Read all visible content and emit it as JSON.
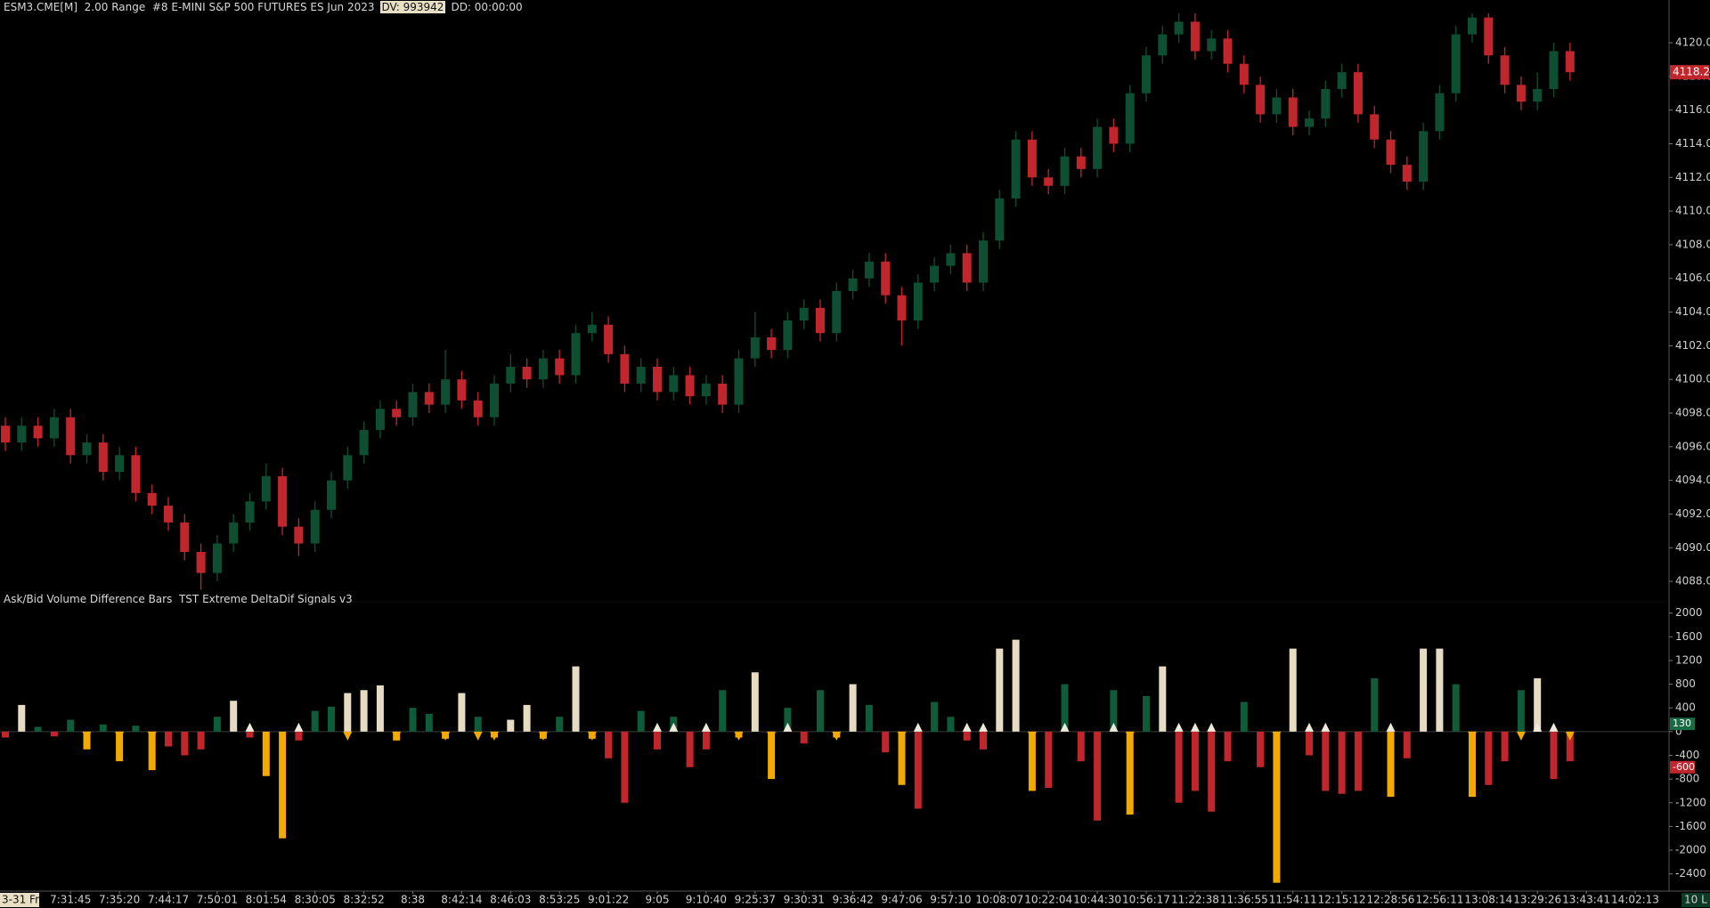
{
  "chart_data": [
    {
      "type": "candlestick",
      "title": "ESM3.CME[M]  2.00 Range  #8 E-MINI S&P 500 FUTURES ES Jun 2023",
      "dv": "DV: 993942",
      "dd": "DD: 00:00:00",
      "bar_count_label": "10 L",
      "up_color": "#0e4f34",
      "down_color": "#c1262d",
      "last_price": 4118.25,
      "last_price_color": "#c1262d",
      "categories": [
        "3-31 Fr",
        null,
        null,
        null,
        "7:31:45",
        null,
        null,
        "7:35:20",
        null,
        null,
        "7:44:17",
        null,
        null,
        "7:50:01",
        null,
        null,
        "8:01:54",
        null,
        null,
        "8:30:05",
        null,
        null,
        "8:32:52",
        null,
        null,
        "8:38",
        null,
        null,
        "8:42:14",
        null,
        null,
        "8:46:03",
        null,
        null,
        "8:53:25",
        null,
        null,
        "9:01:22",
        null,
        null,
        "9:05",
        null,
        null,
        "9:10:40",
        null,
        null,
        "9:25:37",
        null,
        null,
        "9:30:31",
        null,
        null,
        "9:36:42",
        null,
        null,
        "9:47:06",
        null,
        null,
        "9:57:10",
        null,
        null,
        "10:08:07",
        null,
        null,
        "10:22:04",
        null,
        null,
        "10:44:30",
        null,
        null,
        "10:56:17",
        null,
        null,
        "11:22:38",
        null,
        null,
        "11:36:55",
        null,
        null,
        "11:54:11",
        null,
        null,
        "12:15:12",
        null,
        null,
        "12:28:56",
        null,
        null,
        "12:56:11",
        null,
        null,
        "13:08:14",
        null,
        null,
        "13:29:26",
        null,
        null,
        "13:43:41",
        null,
        null,
        "14:02:13"
      ],
      "open": [
        4097.25,
        4096.25,
        4097.25,
        4096.5,
        4097.75,
        4095.5,
        4096.25,
        4094.5,
        4095.5,
        4093.25,
        4092.5,
        4091.5,
        4089.75,
        4088.5,
        4090.25,
        4091.5,
        4092.75,
        4094.25,
        4091.25,
        4090.25,
        4092.25,
        4094,
        4095.5,
        4097,
        4098.25,
        4097.75,
        4099.25,
        4098.5,
        4100,
        4098.75,
        4097.75,
        4099.75,
        4100.75,
        4100,
        4101.25,
        4100.25,
        4102.75,
        4103.25,
        4101.5,
        4099.75,
        4100.75,
        4099.25,
        4100.25,
        4099,
        4099.75,
        4098.5,
        4101.25,
        4102.5,
        4101.75,
        4103.5,
        4104.25,
        4102.75,
        4105.25,
        4106,
        4107,
        4105,
        4103.5,
        4105.75,
        4106.75,
        4107.5,
        4105.75,
        4108.25,
        4110.75,
        4114.25,
        4112,
        4111.5,
        4113.25,
        4112.5,
        4115,
        4114,
        4117,
        4119.25,
        4120.5,
        4121.25,
        4119.5,
        4120.25,
        4118.75,
        4117.5,
        4115.75,
        4116.75,
        4115,
        4115.5,
        4117.25,
        4118.25,
        4115.75,
        4114.25,
        4112.75,
        4111.75,
        4114.75,
        4117,
        4120.5,
        4121.5,
        4119.25,
        4117.5,
        4116.5,
        4117.25,
        4119.5,
        null,
        null,
        null,
        null
      ],
      "high": [
        4097.75,
        4097.75,
        4097.75,
        4098.25,
        4098.25,
        4096.75,
        4096.75,
        4096,
        4096,
        4093.75,
        4093,
        4092,
        4090.25,
        4090.75,
        4092,
        4093.25,
        4095,
        4094.75,
        4091.75,
        4092.75,
        4094.5,
        4096,
        4097.5,
        4098.75,
        4098.75,
        4099.75,
        4099.75,
        4101.75,
        4100.5,
        4099.25,
        4100.25,
        4101.5,
        4101.25,
        4101.75,
        4101.75,
        4103.25,
        4104,
        4103.75,
        4102,
        4101.25,
        4101.25,
        4100.75,
        4100.75,
        4100.25,
        4100.25,
        4101.75,
        4104,
        4103,
        4104,
        4104.75,
        4104.75,
        4105.75,
        4106.5,
        4107.5,
        4107.5,
        4105.5,
        4106.25,
        4107.25,
        4108,
        4108,
        4108.75,
        4111.25,
        4114.75,
        4114.75,
        4112.5,
        4113.75,
        4113.75,
        4115.5,
        4115.5,
        4117.5,
        4119.75,
        4121,
        4121.75,
        4121.75,
        4120.75,
        4120.75,
        4119.25,
        4118,
        4117.25,
        4117.25,
        4116,
        4117.75,
        4118.75,
        4118.75,
        4116.25,
        4114.75,
        4113.25,
        4115.25,
        4117.5,
        4121,
        4121.75,
        4121.75,
        4119.75,
        4118,
        4118.25,
        4120,
        4120,
        null,
        null,
        null,
        null
      ],
      "low": [
        4095.75,
        4095.75,
        4096,
        4096,
        4095,
        4095,
        4094,
        4094,
        4092.75,
        4092,
        4091,
        4089.25,
        4087.5,
        4088,
        4089.75,
        4091,
        4092.25,
        4090.75,
        4089.5,
        4089.75,
        4091.75,
        4093.5,
        4095,
        4096.5,
        4097.25,
        4097.25,
        4098,
        4098,
        4098.25,
        4097.25,
        4097.25,
        4099.25,
        4099.5,
        4099.5,
        4099.75,
        4099.75,
        4102.25,
        4101,
        4099.25,
        4099.25,
        4098.75,
        4098.75,
        4098.5,
        4098.5,
        4098,
        4098,
        4100.75,
        4101.25,
        4101.25,
        4103,
        4102.25,
        4102.25,
        4104.75,
        4105.5,
        4104.5,
        4102,
        4103,
        4105.25,
        4106.25,
        4105.25,
        4105.25,
        4107.75,
        4110.25,
        4111.5,
        4111,
        4111,
        4112,
        4112,
        4113.5,
        4113.5,
        4116.5,
        4118.75,
        4120,
        4119,
        4119,
        4118.25,
        4117,
        4115.25,
        4115.25,
        4114.5,
        4114.5,
        4115,
        4116.75,
        4115.25,
        4113.75,
        4112.25,
        4111.25,
        4111.25,
        4114.25,
        4116.5,
        4120,
        4118.75,
        4117,
        4116,
        4116,
        4116.75,
        4117.75,
        null,
        null,
        null,
        null
      ],
      "close": [
        4096.25,
        4097.25,
        4096.5,
        4097.75,
        4095.5,
        4096.25,
        4094.5,
        4095.5,
        4093.25,
        4092.5,
        4091.5,
        4089.75,
        4088.5,
        4090.25,
        4091.5,
        4092.75,
        4094.25,
        4091.25,
        4090.25,
        4092.25,
        4094,
        4095.5,
        4097,
        4098.25,
        4097.75,
        4099.25,
        4098.5,
        4100,
        4098.75,
        4097.75,
        4099.75,
        4100.75,
        4100,
        4101.25,
        4100.25,
        4102.75,
        4103.25,
        4101.5,
        4099.75,
        4100.75,
        4099.25,
        4100.25,
        4099,
        4099.75,
        4098.5,
        4101.25,
        4102.5,
        4101.75,
        4103.5,
        4104.25,
        4102.75,
        4105.25,
        4106,
        4107,
        4105,
        4103.5,
        4105.75,
        4106.75,
        4107.5,
        4105.75,
        4108.25,
        4110.75,
        4114.25,
        4112,
        4111.5,
        4113.25,
        4112.5,
        4115,
        4114,
        4117,
        4119.25,
        4120.5,
        4121.25,
        4119.5,
        4120.25,
        4118.75,
        4117.5,
        4115.75,
        4116.75,
        4115,
        4115.5,
        4117.25,
        4118.25,
        4115.75,
        4114.25,
        4112.75,
        4111.75,
        4114.75,
        4117,
        4120.5,
        4121.5,
        4119.25,
        4117.5,
        4116.5,
        4117.25,
        4119.5,
        4118.25,
        null,
        null,
        null,
        null
      ],
      "ylim": [
        4087,
        4121.8
      ],
      "yticks": [
        {
          "value": 4088,
          "label": "4088.00"
        },
        {
          "value": 4090,
          "label": "4090.00"
        },
        {
          "value": 4092,
          "label": "4092.00"
        },
        {
          "value": 4094,
          "label": "4094.00"
        },
        {
          "value": 4096,
          "label": "4096.00"
        },
        {
          "value": 4098,
          "label": "4098.00"
        },
        {
          "value": 4100,
          "label": "4100.00"
        },
        {
          "value": 4102,
          "label": "4102.00"
        },
        {
          "value": 4104,
          "label": "4104.00"
        },
        {
          "value": 4106,
          "label": "4106.00"
        },
        {
          "value": 4108,
          "label": "4108.00"
        },
        {
          "value": 4110,
          "label": "4110.00"
        },
        {
          "value": 4112,
          "label": "4112.00"
        },
        {
          "value": 4114,
          "label": "4114.00"
        },
        {
          "value": 4116,
          "label": "4116.00"
        },
        {
          "value": 4118,
          "label": "4118.00"
        },
        {
          "value": 4120,
          "label": "4120.00"
        }
      ],
      "grid": false
    },
    {
      "type": "bar",
      "title": "Ask/Bid Volume Difference Bars  TST Extreme DeltaDif Signals v3",
      "values": [
        -100,
        450,
        80,
        -80,
        200,
        -300,
        120,
        -500,
        100,
        -650,
        -250,
        -400,
        -300,
        250,
        520,
        -100,
        -750,
        -1800,
        -150,
        350,
        420,
        650,
        700,
        780,
        -150,
        400,
        300,
        -120,
        650,
        250,
        -100,
        200,
        450,
        -120,
        250,
        1100,
        -120,
        -450,
        -1200,
        350,
        -300,
        250,
        -600,
        -300,
        700,
        -100,
        1000,
        -800,
        400,
        -200,
        700,
        -100,
        800,
        450,
        -350,
        -900,
        -1300,
        500,
        250,
        -150,
        -300,
        1400,
        1550,
        -1000,
        -950,
        800,
        -500,
        -1500,
        700,
        -1400,
        600,
        1100,
        -1200,
        -1000,
        -1350,
        -500,
        500,
        -600,
        -2550,
        1400,
        -400,
        -1000,
        -1050,
        -1000,
        900,
        -1100,
        -450,
        1400,
        1400,
        800,
        -1100,
        -900,
        -500,
        700,
        900,
        -800,
        -500,
        null,
        null,
        null,
        null
      ],
      "bar_colors": [
        "#c1262d",
        "#e6dcc3",
        "#0f5c3a",
        "#c1262d",
        "#0f5c3a",
        "#f2a900",
        "#0f5c3a",
        "#f2a900",
        "#0f5c3a",
        "#f2a900",
        "#c1262d",
        "#c1262d",
        "#c1262d",
        "#0f5c3a",
        "#e6dcc3",
        "#c1262d",
        "#f2a900",
        "#f2a900",
        "#c1262d",
        "#0f5c3a",
        "#0f5c3a",
        "#e6dcc3",
        "#e6dcc3",
        "#e6dcc3",
        "#f2a900",
        "#0f5c3a",
        "#0f5c3a",
        "#f2a900",
        "#e6dcc3",
        "#0f5c3a",
        "#f2a900",
        "#e6dcc3",
        "#e6dcc3",
        "#f2a900",
        "#0f5c3a",
        "#e6dcc3",
        "#f2a900",
        "#c1262d",
        "#c1262d",
        "#0f5c3a",
        "#c1262d",
        "#0f5c3a",
        "#c1262d",
        "#c1262d",
        "#0f5c3a",
        "#f2a900",
        "#e6dcc3",
        "#f2a900",
        "#0f5c3a",
        "#c1262d",
        "#0f5c3a",
        "#f2a900",
        "#e6dcc3",
        "#0f5c3a",
        "#c1262d",
        "#f2a900",
        "#c1262d",
        "#0f5c3a",
        "#0f5c3a",
        "#c1262d",
        "#c1262d",
        "#e6dcc3",
        "#e6dcc3",
        "#f2a900",
        "#c1262d",
        "#0f5c3a",
        "#c1262d",
        "#c1262d",
        "#0f5c3a",
        "#f2a900",
        "#0f5c3a",
        "#e6dcc3",
        "#c1262d",
        "#c1262d",
        "#c1262d",
        "#c1262d",
        "#0f5c3a",
        "#c1262d",
        "#f2a900",
        "#e6dcc3",
        "#c1262d",
        "#c1262d",
        "#c1262d",
        "#c1262d",
        "#0f5c3a",
        "#f2a900",
        "#c1262d",
        "#e6dcc3",
        "#e6dcc3",
        "#0f5c3a",
        "#f2a900",
        "#c1262d",
        "#c1262d",
        "#0f5c3a",
        "#e6dcc3",
        "#c1262d",
        "#c1262d",
        null,
        null,
        null,
        null
      ],
      "signals": [
        null,
        null,
        null,
        null,
        null,
        "down",
        null,
        "down",
        null,
        "down",
        null,
        null,
        null,
        null,
        null,
        "up",
        null,
        null,
        "up",
        null,
        null,
        "down",
        null,
        null,
        "down",
        null,
        null,
        "down",
        null,
        "down",
        "down",
        null,
        null,
        "down",
        null,
        null,
        "down",
        null,
        null,
        null,
        "up",
        "up",
        null,
        "up",
        null,
        "down",
        null,
        "down",
        "up",
        null,
        null,
        "down",
        null,
        null,
        null,
        "down",
        "up",
        null,
        null,
        "up",
        "up",
        null,
        null,
        "down",
        null,
        "up",
        null,
        null,
        "up",
        "down",
        null,
        null,
        "up",
        "up",
        "up",
        null,
        null,
        null,
        "down",
        null,
        "up",
        "up",
        null,
        null,
        null,
        "up",
        null,
        null,
        null,
        null,
        "down",
        null,
        null,
        "down",
        "up",
        "up",
        "down",
        null,
        null,
        null,
        null
      ],
      "signal_up_color": "#efeadb",
      "signal_down_color": "#f2a900",
      "badges": [
        {
          "value": 130,
          "color": "#1a6b45"
        },
        {
          "value": -600,
          "color": "#c1262d"
        }
      ],
      "ylim": [
        -2600,
        2130
      ],
      "yticks": [
        2000,
        1600,
        1200,
        800,
        400,
        0,
        -400,
        -800,
        -1200,
        -1600,
        -2000,
        -2400
      ],
      "grid": false
    }
  ]
}
